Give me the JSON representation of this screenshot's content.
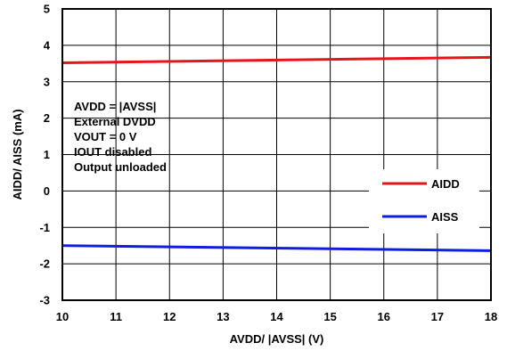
{
  "chart_data": {
    "type": "line",
    "xlabel": "AVDD/ |AVSS| (V)",
    "ylabel": "AIDD/ AISS (mA)",
    "xlim": [
      10,
      18
    ],
    "ylim": [
      -3,
      5
    ],
    "x_ticks": [
      "10",
      "11",
      "12",
      "13",
      "14",
      "15",
      "16",
      "17",
      "18"
    ],
    "y_ticks": [
      "-3",
      "-2",
      "-1",
      "0",
      "1",
      "2",
      "3",
      "4",
      "5"
    ],
    "grid": true,
    "legend_position": "bottom-right",
    "series": [
      {
        "name": "AIDD",
        "color": "#e8141c",
        "x": [
          10,
          18
        ],
        "y": [
          3.52,
          3.67
        ]
      },
      {
        "name": "AISS",
        "color": "#0f1de0",
        "x": [
          10,
          18
        ],
        "y": [
          -1.5,
          -1.64
        ]
      }
    ],
    "annotations": [
      "AVDD = |AVSS|",
      "External DVDD",
      "VOUT = 0 V",
      "IOUT disabled",
      "Output unloaded"
    ]
  }
}
